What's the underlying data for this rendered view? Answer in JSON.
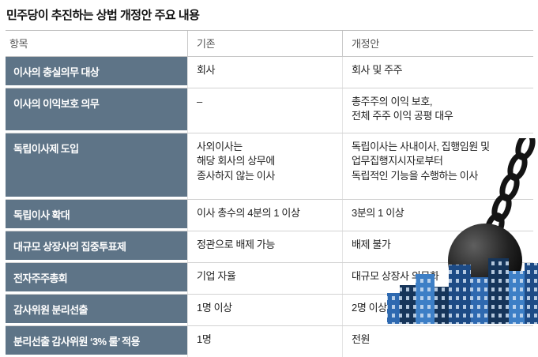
{
  "title": "민주당이 추진하는 상법 개정안 주요 내용",
  "chart_data": {
    "type": "table",
    "title": "민주당이 추진하는 상법 개정안 주요 내용",
    "columns": [
      "항목",
      "기존",
      "개정안"
    ],
    "rows": [
      [
        "이사의 충실의무 대상",
        "회사",
        "회사 및 주주"
      ],
      [
        "이사의 이익보호 의무",
        "–",
        "총주주의 이익 보호,\n전체 주주 이익 공평 대우"
      ],
      [
        "독립이사제 도입",
        "사외이사는\n해당 회사의 상무에\n종사하지 않는 이사",
        "독립이사는 사내이사, 집행임원 및\n업무집행지시자로부터\n독립적인 기능을 수행하는 이사"
      ],
      [
        "독립이사 확대",
        "이사 총수의 4분의 1 이상",
        "3분의 1 이상"
      ],
      [
        "대규모 상장사의 집중투표제",
        "정관으로 배제 가능",
        "배제 불가"
      ],
      [
        "전자주주총회",
        "기업 자율",
        "대규모 상장사 의무화"
      ],
      [
        "감사위원 분리선출",
        "1명 이상",
        "2명 이상"
      ],
      [
        "분리선출 감사위원 ‘3% 룰’ 적용",
        "1명",
        "전원"
      ]
    ]
  },
  "colors": {
    "item_cell_bg": "#5e7487",
    "item_cell_text": "#ffffff",
    "header_text": "#555555",
    "body_text": "#222222",
    "divider": "#d2d2d2",
    "ball": "#111111",
    "building_navy": "#16355a",
    "building_blue": "#2e69b0",
    "building_light_blue": "#3d7fc6"
  },
  "illustration": {
    "name": "wrecking-ball-demolishing-city",
    "parts": [
      "chain",
      "wrecking-ball",
      "city-buildings"
    ]
  }
}
